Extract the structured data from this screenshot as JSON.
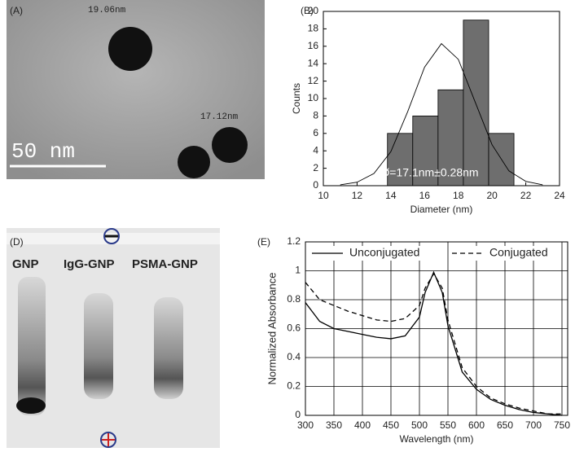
{
  "panels": {
    "A": {
      "label": "(A)",
      "size_1": "19.06nm",
      "size_2": "17.12nm",
      "scale_bar": "50 nm"
    },
    "D": {
      "label": "(D)",
      "lanes": [
        "GNP",
        "IgG-GNP",
        "PSMA-GNP"
      ]
    },
    "E": {
      "label": "(E)"
    }
  },
  "chart_data": [
    {
      "type": "histogram",
      "panel_label": "(B)",
      "x_label": "Diameter (nm)",
      "y_label": "Counts",
      "annotation": "Ø=17.1nm±0.28nm",
      "bins": [
        13.8,
        15.3,
        16.8,
        18.3,
        19.8,
        21.3
      ],
      "counts": [
        6,
        8,
        11,
        19,
        6
      ],
      "color": "#6e6e6e",
      "fit": {
        "x": [
          11,
          12,
          13,
          14,
          15,
          16,
          17,
          18,
          19,
          20,
          21,
          22,
          23
        ],
        "values": [
          0.1,
          0.4,
          1.4,
          3.9,
          8.5,
          13.6,
          16.3,
          14.5,
          9.6,
          4.7,
          1.7,
          0.5,
          0.1
        ],
        "color": "#000000"
      },
      "xlim": [
        10,
        24
      ],
      "xticks": [
        10,
        12,
        14,
        16,
        18,
        20,
        22,
        24
      ],
      "ylim": [
        0,
        20
      ],
      "yticks": [
        0,
        2,
        4,
        6,
        8,
        10,
        12,
        14,
        16,
        18,
        20
      ],
      "grid": false
    },
    {
      "type": "line",
      "x_label": "Wavelength (nm)",
      "y_label": "Normalized Absorbance",
      "x": [
        300,
        325,
        350,
        375,
        400,
        425,
        450,
        475,
        500,
        510,
        525,
        540,
        550,
        575,
        600,
        625,
        650,
        675,
        700,
        725,
        750
      ],
      "series": [
        {
          "name": "Unconjugated",
          "color": "#000000",
          "dash": false,
          "values": [
            0.78,
            0.65,
            0.6,
            0.58,
            0.56,
            0.54,
            0.53,
            0.55,
            0.68,
            0.85,
            0.99,
            0.85,
            0.62,
            0.3,
            0.18,
            0.11,
            0.07,
            0.04,
            0.02,
            0.01,
            0.0
          ]
        },
        {
          "name": "Conjugated",
          "color": "#000000",
          "dash": true,
          "values": [
            0.92,
            0.8,
            0.76,
            0.72,
            0.69,
            0.66,
            0.65,
            0.67,
            0.76,
            0.88,
            0.98,
            0.88,
            0.66,
            0.33,
            0.2,
            0.12,
            0.08,
            0.05,
            0.03,
            0.01,
            0.01
          ]
        }
      ],
      "xlim": [
        300,
        760
      ],
      "xticks": [
        300,
        350,
        400,
        450,
        500,
        550,
        600,
        650,
        700,
        750
      ],
      "ylim": [
        0,
        1.2
      ],
      "yticks": [
        0,
        0.2,
        0.4,
        0.6,
        0.8,
        1,
        1.2
      ],
      "grid": true
    }
  ]
}
